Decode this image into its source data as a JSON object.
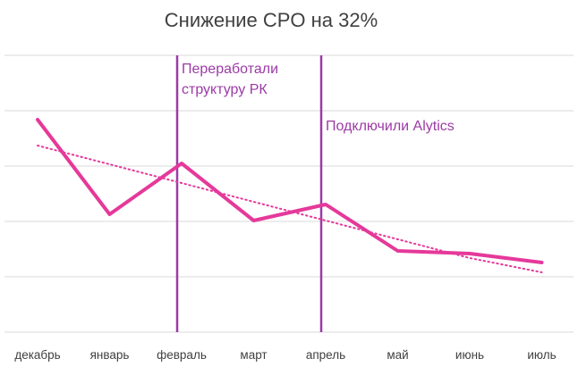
{
  "chart_data": {
    "type": "line",
    "title": "Снижение CPO на 32%",
    "xlabel": "",
    "ylabel": "",
    "categories": [
      "декабрь",
      "январь",
      "февраль",
      "март",
      "апрель",
      "май",
      "июнь",
      "июль"
    ],
    "series": [
      {
        "values": [
          134,
          240,
          183,
          247,
          229,
          281,
          284,
          294
        ],
        "style": "solid"
      },
      {
        "values": [
          163,
          184,
          205,
          226,
          247,
          268,
          289,
          305
        ],
        "style": "dotted"
      }
    ],
    "ylim": [
      400,
      0
    ],
    "y_tick_values": [
      62,
      124,
      186,
      248,
      310,
      372
    ],
    "grid": true,
    "legend": "none",
    "annotations": [
      {
        "text_lines": [
          "Переработали",
          "структуру РК"
        ],
        "x_category": "февраль"
      },
      {
        "text_lines": [
          "Подключили Alytics"
        ],
        "x_category": "апрель"
      }
    ],
    "colors": {
      "line": "#e5399a",
      "trend": "#e5399a",
      "annotation": "#9c3aa6",
      "grid": "#d9d9d9",
      "text": "#404040"
    }
  }
}
